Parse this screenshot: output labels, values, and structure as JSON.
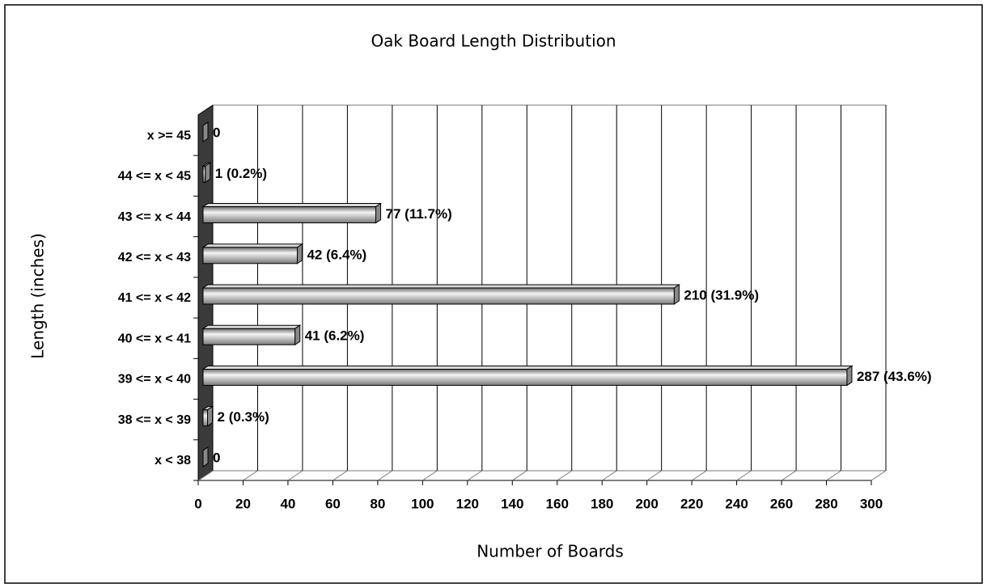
{
  "chart_data": {
    "type": "bar",
    "orientation": "horizontal",
    "title": "Oak Board Length Distribution",
    "x_label": "Number of Boards",
    "y_label": "Length (inches)",
    "categories": [
      "x < 38",
      "38 <= x < 39",
      "39 <= x < 40",
      "40 <= x < 41",
      "41 <= x < 42",
      "42 <= x < 43",
      "43 <= x < 44",
      "44 <= x < 45",
      "x >= 45"
    ],
    "values": [
      0,
      2,
      287,
      41,
      210,
      42,
      77,
      1,
      0
    ],
    "value_labels": [
      "0",
      "2 (0.3%)",
      "287 (43.6%)",
      "41 (6.2%)",
      "210 (31.9%)",
      "42 (6.4%)",
      "77 (11.7%)",
      "1 (0.2%)",
      "0"
    ],
    "color": "#a0a0a0",
    "xlim": [
      0,
      300
    ],
    "xticks": [
      0,
      20,
      40,
      60,
      80,
      100,
      120,
      140,
      160,
      180,
      200,
      220,
      240,
      260,
      280,
      300
    ],
    "grid": true
  }
}
